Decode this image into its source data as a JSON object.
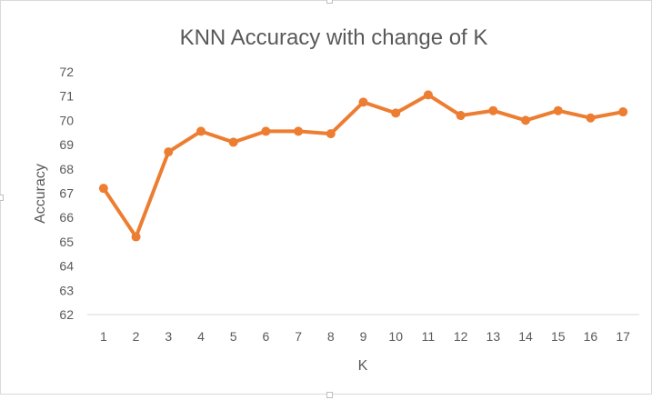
{
  "chart_data": {
    "type": "line",
    "title": "KNN Accuracy with change of K",
    "xlabel": "K",
    "ylabel": "Accuracy",
    "categories": [
      "1",
      "2",
      "3",
      "4",
      "5",
      "6",
      "7",
      "8",
      "9",
      "10",
      "11",
      "12",
      "13",
      "14",
      "15",
      "16",
      "17"
    ],
    "series": [
      {
        "values": [
          67.2,
          65.2,
          68.7,
          69.55,
          69.1,
          69.55,
          69.55,
          69.45,
          70.75,
          70.3,
          71.05,
          70.2,
          70.4,
          70.0,
          70.4,
          70.1,
          70.35
        ]
      }
    ],
    "ylim": [
      62,
      72
    ],
    "yticks": [
      62,
      63,
      64,
      65,
      66,
      67,
      68,
      69,
      70,
      71,
      72
    ],
    "grid": false,
    "line_color": "#ed7d31",
    "legend": "none"
  }
}
